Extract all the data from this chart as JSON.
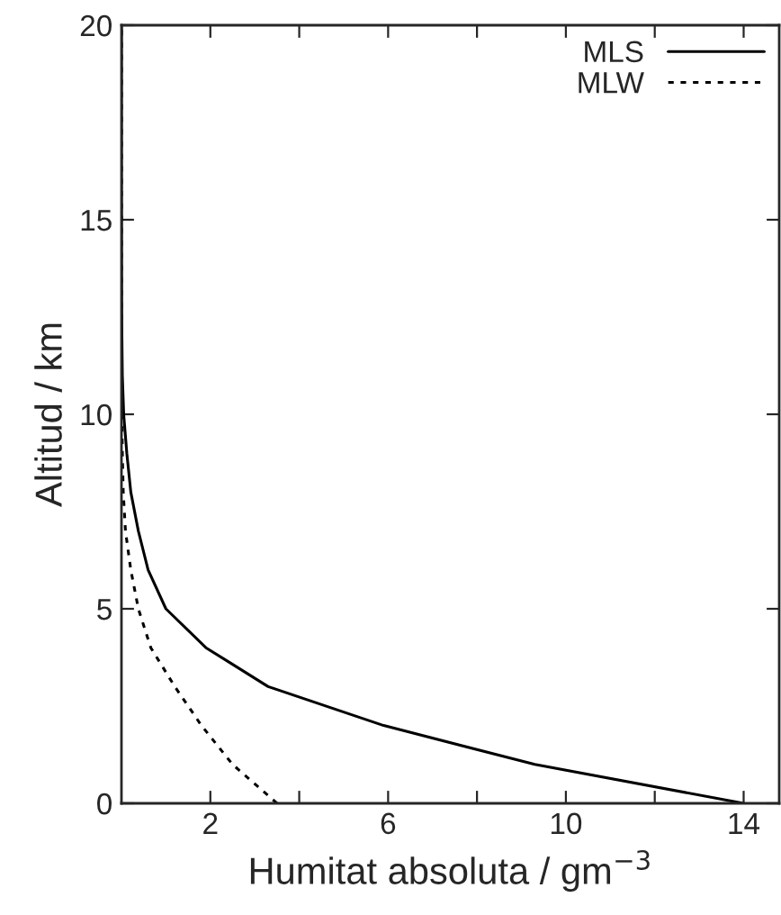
{
  "chart_data": {
    "type": "line",
    "xlabel": "Humitat absoluta / gm$^{−3}$",
    "ylabel": "Altitud / km",
    "xlim": [
      0,
      14.8
    ],
    "ylim": [
      0,
      20
    ],
    "xticks": [
      {
        "value": 2,
        "label": "2"
      },
      {
        "value": 4,
        "label": null
      },
      {
        "value": 6,
        "label": "6"
      },
      {
        "value": 8,
        "label": null
      },
      {
        "value": 10,
        "label": "10"
      },
      {
        "value": 12,
        "label": null
      },
      {
        "value": 14,
        "label": "14"
      }
    ],
    "yticks": [
      0,
      5,
      10,
      15,
      20
    ],
    "grid": false,
    "legend": "top right",
    "series": [
      {
        "name": "MLS",
        "color": "#000000",
        "line_style": "solid",
        "x": [
          14.0,
          9.3,
          5.9,
          3.3,
          1.9,
          1.0,
          0.6,
          0.38,
          0.21,
          0.12,
          0.05,
          0.02,
          0.01,
          0.005,
          0.003,
          0.002,
          0.001,
          0.001,
          0.001,
          0.001,
          0.001
        ],
        "values": [
          0,
          1,
          2,
          3,
          4,
          5,
          6,
          7,
          8,
          9,
          10,
          11,
          12,
          13,
          14,
          15,
          16,
          17,
          18,
          19,
          20
        ]
      },
      {
        "name": "MLW",
        "color": "#000000",
        "line_style": "dotted",
        "x": [
          3.5,
          2.5,
          1.8,
          1.2,
          0.66,
          0.38,
          0.21,
          0.09,
          0.04,
          0.02,
          0.01,
          0.005,
          0.003,
          0.002,
          0.001,
          0.001,
          0.001,
          0.001,
          0.001,
          0.001,
          0.001
        ],
        "values": [
          0,
          1,
          2,
          3,
          4,
          5,
          6,
          7,
          8,
          9,
          10,
          11,
          12,
          13,
          14,
          15,
          16,
          17,
          18,
          19,
          20
        ]
      }
    ]
  }
}
